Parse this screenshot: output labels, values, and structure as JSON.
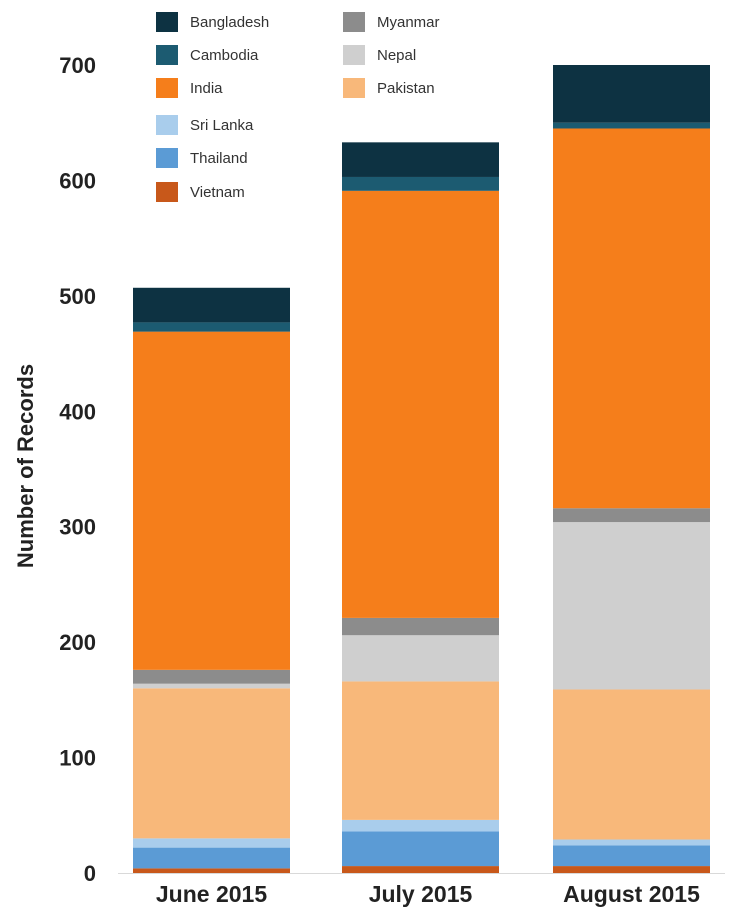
{
  "chart_data": {
    "type": "bar",
    "stacked": true,
    "title": "",
    "xlabel": "",
    "ylabel": "Number of Records",
    "ylim": [
      0,
      700
    ],
    "yticks": [
      0,
      100,
      200,
      300,
      400,
      500,
      600,
      700
    ],
    "categories": [
      "June 2015",
      "July 2015",
      "August 2015"
    ],
    "legend_position": "top-left",
    "series": [
      {
        "name": "Vietnam",
        "color": "#c8581a",
        "values": [
          4,
          6,
          6
        ]
      },
      {
        "name": "Thailand",
        "color": "#5b9bd5",
        "values": [
          18,
          30,
          18
        ]
      },
      {
        "name": "Sri Lanka",
        "color": "#a9cdec",
        "values": [
          8,
          10,
          5
        ]
      },
      {
        "name": "Pakistan",
        "color": "#f8b87a",
        "values": [
          130,
          120,
          130
        ]
      },
      {
        "name": "Nepal",
        "color": "#cfcfcf",
        "values": [
          4,
          40,
          145
        ]
      },
      {
        "name": "Myanmar",
        "color": "#8c8c8c",
        "values": [
          12,
          15,
          12
        ]
      },
      {
        "name": "India",
        "color": "#f57e1b",
        "values": [
          293,
          370,
          329
        ]
      },
      {
        "name": "Cambodia",
        "color": "#1c5b71",
        "values": [
          8,
          12,
          5
        ]
      },
      {
        "name": "Bangladesh",
        "color": "#0d3242",
        "values": [
          30,
          30,
          50
        ]
      }
    ],
    "legend_order": [
      [
        "Bangladesh",
        "Myanmar"
      ],
      [
        "Cambodia",
        "Nepal"
      ],
      [
        "India",
        "Pakistan"
      ],
      [
        "Sri Lanka",
        null
      ],
      [
        "Thailand",
        null
      ],
      [
        "Vietnam",
        null
      ]
    ]
  }
}
